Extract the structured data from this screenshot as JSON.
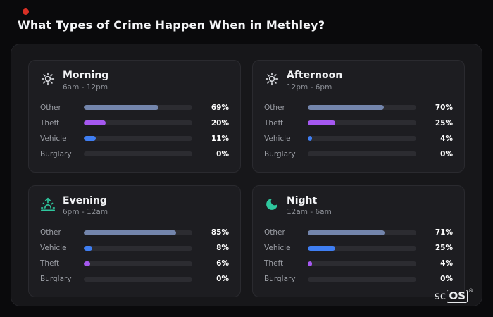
{
  "page": {
    "title": "What Types of Crime Happen When in Methley?"
  },
  "brand": {
    "prefix": "sc",
    "suffix": "OS",
    "reg": "®"
  },
  "colors": {
    "background": "#0a0a0c",
    "panel": "#17171a",
    "card": "#1d1d21",
    "track": "#2c2c31",
    "other_bar": "#7385ac",
    "theft_bar": "#a558f0",
    "vehicle_bar": "#3f7ef2",
    "teal_icon": "#2fc79e",
    "sun_icon": "#d9dbe0",
    "red_dot": "#d93025"
  },
  "chart_data": [
    {
      "type": "bar",
      "orientation": "horizontal",
      "title": "Morning",
      "subtitle": "6am - 12pm",
      "icon": "sun-icon",
      "categories": [
        "Other",
        "Theft",
        "Vehicle",
        "Burglary"
      ],
      "values": [
        69,
        20,
        11,
        0
      ],
      "value_labels": [
        "69%",
        "20%",
        "11%",
        "0%"
      ],
      "colors": [
        "#7385ac",
        "#a558f0",
        "#3f7ef2",
        "#7385ac"
      ],
      "xlim": [
        0,
        100
      ]
    },
    {
      "type": "bar",
      "orientation": "horizontal",
      "title": "Afternoon",
      "subtitle": "12pm - 6pm",
      "icon": "sun-icon",
      "categories": [
        "Other",
        "Theft",
        "Vehicle",
        "Burglary"
      ],
      "values": [
        70,
        25,
        4,
        0
      ],
      "value_labels": [
        "70%",
        "25%",
        "4%",
        "0%"
      ],
      "colors": [
        "#7385ac",
        "#a558f0",
        "#3f7ef2",
        "#7385ac"
      ],
      "xlim": [
        0,
        100
      ]
    },
    {
      "type": "bar",
      "orientation": "horizontal",
      "title": "Evening",
      "subtitle": "6pm - 12am",
      "icon": "sunset-icon",
      "categories": [
        "Other",
        "Vehicle",
        "Theft",
        "Burglary"
      ],
      "values": [
        85,
        8,
        6,
        0
      ],
      "value_labels": [
        "85%",
        "8%",
        "6%",
        "0%"
      ],
      "colors": [
        "#7385ac",
        "#3f7ef2",
        "#a558f0",
        "#7385ac"
      ],
      "xlim": [
        0,
        100
      ]
    },
    {
      "type": "bar",
      "orientation": "horizontal",
      "title": "Night",
      "subtitle": "12am - 6am",
      "icon": "moon-icon",
      "categories": [
        "Other",
        "Vehicle",
        "Theft",
        "Burglary"
      ],
      "values": [
        71,
        25,
        4,
        0
      ],
      "value_labels": [
        "71%",
        "25%",
        "4%",
        "0%"
      ],
      "colors": [
        "#7385ac",
        "#3f7ef2",
        "#a558f0",
        "#7385ac"
      ],
      "xlim": [
        0,
        100
      ]
    }
  ]
}
